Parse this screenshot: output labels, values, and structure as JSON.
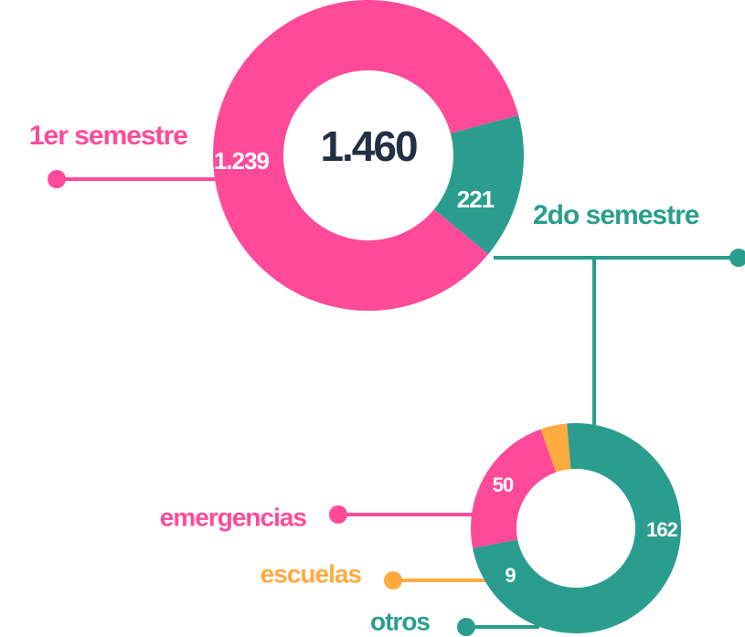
{
  "chart_data": [
    {
      "type": "pie",
      "donut": true,
      "center_label": "1.460",
      "categories": [
        "1er semestre",
        "2do semestre"
      ],
      "values": [
        1239,
        221
      ],
      "value_labels": [
        "1.239",
        "221"
      ],
      "colors": [
        "#ff4a9a",
        "#2a9d8f"
      ]
    },
    {
      "type": "pie",
      "donut": true,
      "categories": [
        "emergencias",
        "escuelas",
        "otros"
      ],
      "values": [
        50,
        9,
        162
      ],
      "colors": [
        "#ff4a9a",
        "#ffab40",
        "#2a9d8f"
      ]
    }
  ]
}
